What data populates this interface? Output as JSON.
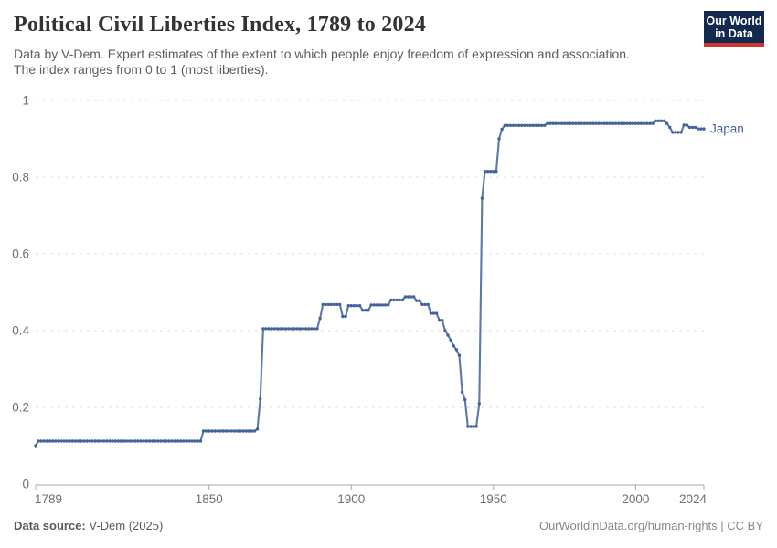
{
  "header": {
    "title": "Political Civil Liberties Index, 1789 to 2024",
    "subtitle_line1": "Data by V-Dem. Expert estimates of the extent to which people enjoy freedom of expression and association.",
    "subtitle_line2": "The index ranges from 0 to 1 (most liberties).",
    "logo": {
      "line1": "Our World",
      "line2": "in Data",
      "bg_color": "#13294e",
      "accent_color": "#ce352c"
    }
  },
  "chart_data": {
    "type": "line",
    "title": "Political Civil Liberties Index, 1789 to 2024",
    "xlabel": "",
    "ylabel": "",
    "xlim": [
      1789,
      2024
    ],
    "ylim": [
      0,
      1
    ],
    "x_ticks": [
      1789,
      1850,
      1900,
      1950,
      2000,
      2024
    ],
    "y_ticks": [
      0,
      0.2,
      0.4,
      0.6,
      0.8,
      1
    ],
    "grid": "horizontal-dashed",
    "legend_position": "end-of-line",
    "series": [
      {
        "name": "Japan",
        "color": "#44639c",
        "line_color": "#5b79ab",
        "segments_format": "[start_year, end_year, value] (value constant over range)",
        "segments": [
          [
            1789,
            1789,
            0.1
          ],
          [
            1790,
            1847,
            0.112
          ],
          [
            1848,
            1866,
            0.138
          ],
          [
            1867,
            1867,
            0.143
          ],
          [
            1868,
            1868,
            0.222
          ],
          [
            1869,
            1888,
            0.405
          ],
          [
            1889,
            1889,
            0.432
          ],
          [
            1890,
            1896,
            0.468
          ],
          [
            1897,
            1898,
            0.437
          ],
          [
            1899,
            1903,
            0.465
          ],
          [
            1904,
            1906,
            0.453
          ],
          [
            1907,
            1913,
            0.467
          ],
          [
            1914,
            1918,
            0.48
          ],
          [
            1919,
            1922,
            0.488
          ],
          [
            1923,
            1924,
            0.478
          ],
          [
            1925,
            1927,
            0.468
          ],
          [
            1928,
            1930,
            0.445
          ],
          [
            1931,
            1932,
            0.427
          ],
          [
            1933,
            1933,
            0.4
          ],
          [
            1934,
            1934,
            0.388
          ],
          [
            1935,
            1935,
            0.375
          ],
          [
            1936,
            1936,
            0.36
          ],
          [
            1937,
            1937,
            0.35
          ],
          [
            1938,
            1938,
            0.335
          ],
          [
            1939,
            1939,
            0.24
          ],
          [
            1940,
            1940,
            0.22
          ],
          [
            1941,
            1944,
            0.15
          ],
          [
            1945,
            1945,
            0.21
          ],
          [
            1946,
            1946,
            0.745
          ],
          [
            1947,
            1951,
            0.815
          ],
          [
            1952,
            1952,
            0.9
          ],
          [
            1953,
            1953,
            0.925
          ],
          [
            1954,
            1968,
            0.935
          ],
          [
            1969,
            2006,
            0.94
          ],
          [
            2007,
            2010,
            0.947
          ],
          [
            2011,
            2011,
            0.94
          ],
          [
            2012,
            2012,
            0.93
          ],
          [
            2013,
            2016,
            0.917
          ],
          [
            2017,
            2018,
            0.936
          ],
          [
            2019,
            2021,
            0.93
          ],
          [
            2022,
            2024,
            0.926
          ]
        ]
      }
    ]
  },
  "footer": {
    "source_label": "Data source:",
    "source_value": " V-Dem (2025)",
    "credit": "OurWorldinData.org/human-rights | CC BY"
  }
}
